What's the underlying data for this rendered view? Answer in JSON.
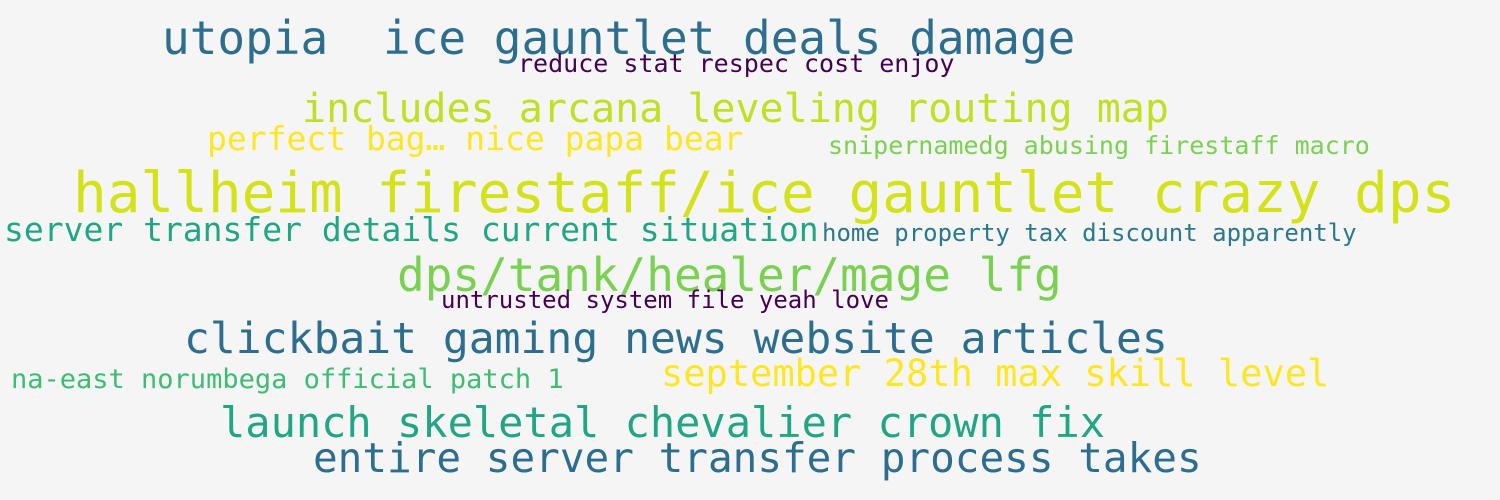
{
  "palette": {
    "background": "#f5f5f5",
    "dark_purple": "#440154",
    "teal_blue": "#2d6e8e",
    "sea_green": "#21a685",
    "green": "#3dbc74",
    "light_green": "#7ad151",
    "lime": "#c2df23",
    "yellow": "#fde725"
  },
  "phrases": [
    {
      "text": "utopia",
      "color": "#2d6e8e"
    },
    {
      "text": "ice gauntlet deals damage",
      "color": "#2d6e8e"
    },
    {
      "text": "reduce stat respec cost enjoy",
      "color": "#440154"
    },
    {
      "text": "includes arcana leveling routing map",
      "color": "#c2df23"
    },
    {
      "text": "perfect bag… nice papa bear",
      "color": "#fde725"
    },
    {
      "text": "snipernamedg abusing firestaff macro",
      "color": "#7ad151"
    },
    {
      "text": "hallheim firestaff/ice gauntlet crazy dps",
      "color": "#d4e21a"
    },
    {
      "text": "server transfer details current situation",
      "color": "#21a685"
    },
    {
      "text": "home property tax discount apparently",
      "color": "#2a788e"
    },
    {
      "text": "dps/tank/healer/mage lfg",
      "color": "#7ad151"
    },
    {
      "text": "untrusted system file yeah love",
      "color": "#440154"
    },
    {
      "text": "clickbait gaming news website articles",
      "color": "#2d6e8e"
    },
    {
      "text": "na-east norumbega official patch 1",
      "color": "#3dbc74"
    },
    {
      "text": "september 28th max skill level",
      "color": "#fde725"
    },
    {
      "text": "launch skeletal chevalier crown fix",
      "color": "#21a685"
    },
    {
      "text": "entire server transfer process takes",
      "color": "#2d6e8e"
    }
  ]
}
